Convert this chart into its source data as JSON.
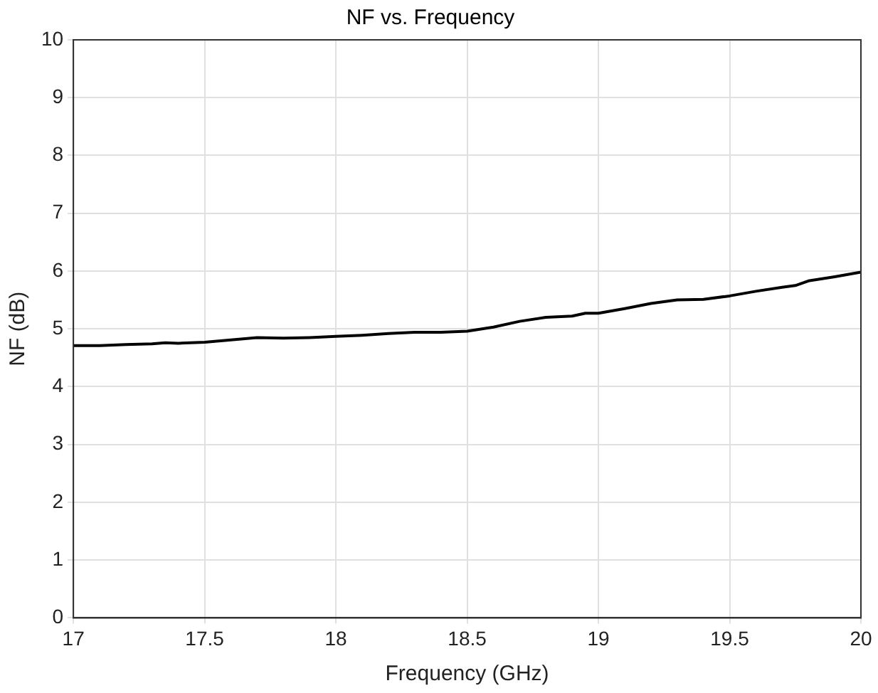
{
  "chart_data": {
    "type": "line",
    "title": "NF vs. Frequency",
    "xlabel": "Frequency (GHz)",
    "ylabel": "NF (dB)",
    "x": [
      17,
      17.1,
      17.2,
      17.3,
      17.35,
      17.4,
      17.5,
      17.6,
      17.7,
      17.8,
      17.9,
      18,
      18.1,
      18.2,
      18.3,
      18.4,
      18.5,
      18.6,
      18.7,
      18.8,
      18.9,
      18.95,
      19,
      19.1,
      19.2,
      19.3,
      19.4,
      19.5,
      19.6,
      19.7,
      19.75,
      19.8,
      19.9,
      20
    ],
    "series": [
      {
        "color": "#000000",
        "values": [
          4.71,
          4.71,
          4.73,
          4.74,
          4.76,
          4.75,
          4.77,
          4.81,
          4.85,
          4.84,
          4.85,
          4.87,
          4.89,
          4.92,
          4.94,
          4.94,
          4.96,
          5.03,
          5.13,
          5.2,
          5.22,
          5.27,
          5.27,
          5.35,
          5.44,
          5.5,
          5.51,
          5.57,
          5.65,
          5.72,
          5.75,
          5.83,
          5.9,
          5.98
        ]
      }
    ],
    "xlim": [
      17,
      20
    ],
    "xticks": [
      17,
      17.5,
      18,
      18.5,
      19,
      19.5,
      20
    ],
    "ylim": [
      0,
      10
    ],
    "yticks": [
      0,
      1,
      2,
      3,
      4,
      5,
      6,
      7,
      8,
      9,
      10
    ],
    "grid": true,
    "legend": false,
    "marker": "none",
    "line_style": "solid"
  }
}
